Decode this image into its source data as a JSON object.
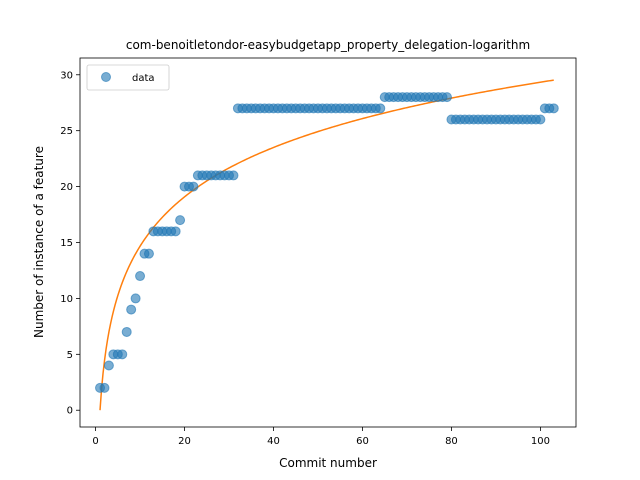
{
  "chart_data": {
    "type": "scatter",
    "title": "com-benoitletondor-easybudgetapp_property_delegation-logarithm",
    "xlabel": "Commit number",
    "ylabel": "Number of instance of a feature",
    "xlim": [
      -3.5,
      108
    ],
    "ylim": [
      -1.5,
      31.5
    ],
    "xticks": [
      0,
      20,
      40,
      60,
      80,
      100
    ],
    "yticks": [
      0,
      5,
      10,
      15,
      20,
      25,
      30
    ],
    "grid": false,
    "legend": {
      "placement": "top-left",
      "entries": [
        "data"
      ]
    },
    "colors": {
      "data": "#1f77b4",
      "fit": "#ff7f0e"
    },
    "series": [
      {
        "name": "data",
        "kind": "scatter",
        "x": [
          1,
          2,
          3,
          4,
          5,
          6,
          7,
          8,
          9,
          10,
          11,
          12,
          13,
          14,
          15,
          16,
          17,
          18,
          19,
          20,
          21,
          22,
          23,
          24,
          25,
          26,
          27,
          28,
          29,
          30,
          31,
          32,
          33,
          34,
          35,
          36,
          37,
          38,
          39,
          40,
          41,
          42,
          43,
          44,
          45,
          46,
          47,
          48,
          49,
          50,
          51,
          52,
          53,
          54,
          55,
          56,
          57,
          58,
          59,
          60,
          61,
          62,
          63,
          64,
          65,
          66,
          67,
          68,
          69,
          70,
          71,
          72,
          73,
          74,
          75,
          76,
          77,
          78,
          79,
          80,
          81,
          82,
          83,
          84,
          85,
          86,
          87,
          88,
          89,
          90,
          91,
          92,
          93,
          94,
          95,
          96,
          97,
          98,
          99,
          100,
          101,
          102,
          103
        ],
        "y": [
          2,
          2,
          4,
          5,
          5,
          5,
          7,
          9,
          10,
          12,
          14,
          14,
          16,
          16,
          16,
          16,
          16,
          16,
          17,
          20,
          20,
          20,
          21,
          21,
          21,
          21,
          21,
          21,
          21,
          21,
          21,
          27,
          27,
          27,
          27,
          27,
          27,
          27,
          27,
          27,
          27,
          27,
          27,
          27,
          27,
          27,
          27,
          27,
          27,
          27,
          27,
          27,
          27,
          27,
          27,
          27,
          27,
          27,
          27,
          27,
          27,
          27,
          27,
          27,
          28,
          28,
          28,
          28,
          28,
          28,
          28,
          28,
          28,
          28,
          28,
          28,
          28,
          28,
          28,
          26,
          26,
          26,
          26,
          26,
          26,
          26,
          26,
          26,
          26,
          26,
          26,
          26,
          26,
          26,
          26,
          26,
          26,
          26,
          26,
          26,
          27,
          27,
          27
        ]
      },
      {
        "kind": "line",
        "model": "logarithmic",
        "a": 6.37,
        "b": 0.0,
        "x_start": 1,
        "x_end": 103
      }
    ]
  }
}
